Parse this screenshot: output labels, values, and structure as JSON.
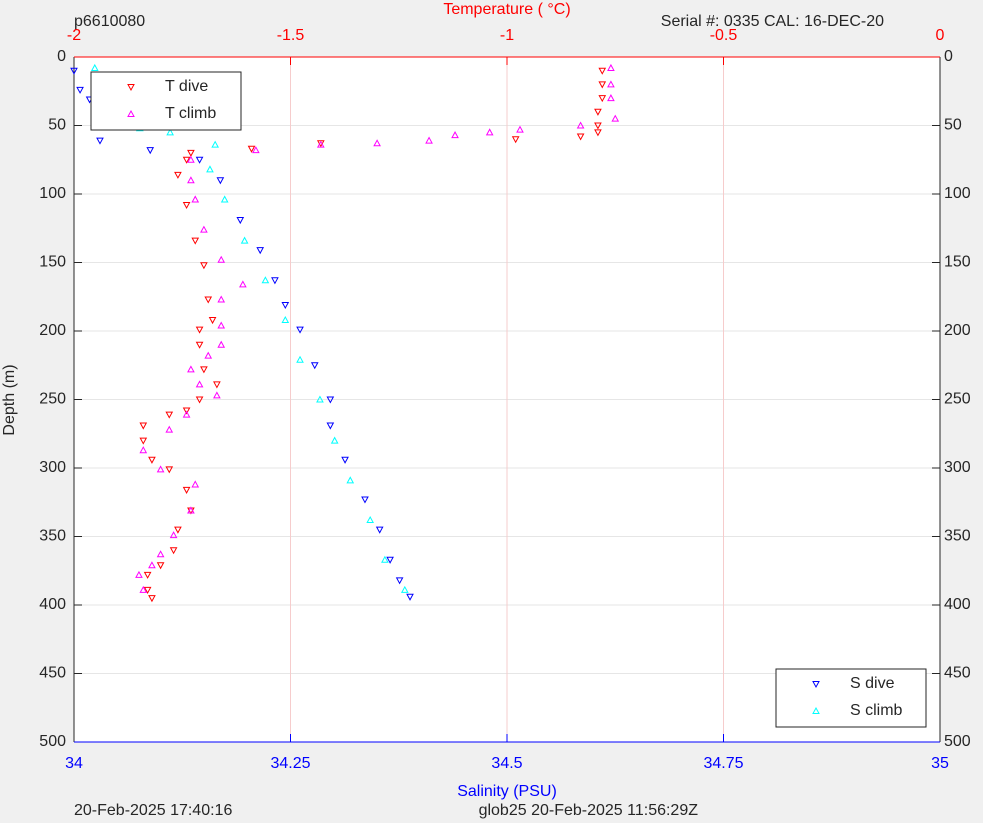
{
  "chart_data": {
    "type": "scatter",
    "header_left": "p6610080",
    "header_right": "Serial #: 0335  CAL: 16-DEC-20",
    "footer_left": "20-Feb-2025 17:40:16",
    "footer_right": "glob25 20-Feb-2025 11:56:29Z",
    "xlabel": "Salinity (PSU)",
    "x2label": "Temperature (    °C)",
    "ylabel": "Depth (m)",
    "xlim": [
      34,
      35
    ],
    "xticks": [
      34,
      34.25,
      34.5,
      34.75,
      35
    ],
    "x2lim": [
      -2,
      0
    ],
    "x2ticks": [
      -2,
      -1.5,
      -1,
      -0.5,
      0
    ],
    "ylim": [
      0,
      500
    ],
    "y_reversed": true,
    "yticks": [
      0,
      50,
      100,
      150,
      200,
      250,
      300,
      350,
      400,
      450,
      500
    ],
    "grid": true,
    "series": [
      {
        "name": "T dive",
        "color": "#ff0000",
        "marker": "v",
        "axis": "x2",
        "legend": "upper left",
        "x": [
          -0.78,
          -0.78,
          -0.78,
          -0.79,
          -0.79,
          -0.79,
          -0.83,
          -0.98,
          -1.43,
          -1.59,
          -1.73,
          -1.74,
          -1.76,
          -1.74,
          -1.72,
          -1.7,
          -1.69,
          -1.68,
          -1.71,
          -1.71,
          -1.7,
          -1.67,
          -1.71,
          -1.74,
          -1.78,
          -1.84,
          -1.84,
          -1.82,
          -1.78,
          -1.74,
          -1.73,
          -1.76,
          -1.77,
          -1.8,
          -1.83,
          -1.83,
          -1.82
        ],
        "values": [
          10,
          20,
          30,
          40,
          50,
          55,
          58,
          60,
          63,
          67,
          70,
          75,
          86,
          108,
          134,
          152,
          177,
          192,
          199,
          210,
          228,
          239,
          250,
          258,
          261,
          269,
          280,
          294,
          301,
          316,
          331,
          345,
          360,
          371,
          378,
          389,
          395
        ]
      },
      {
        "name": "T climb",
        "color": "#ff00ff",
        "marker": "^",
        "axis": "x2",
        "legend": "upper left",
        "x": [
          -0.76,
          -0.76,
          -0.76,
          -0.75,
          -0.83,
          -0.97,
          -1.04,
          -1.12,
          -1.18,
          -1.3,
          -1.43,
          -1.58,
          -1.73,
          -1.73,
          -1.72,
          -1.7,
          -1.66,
          -1.61,
          -1.66,
          -1.66,
          -1.66,
          -1.69,
          -1.73,
          -1.71,
          -1.67,
          -1.74,
          -1.78,
          -1.84,
          -1.8,
          -1.72,
          -1.73,
          -1.77,
          -1.8,
          -1.82,
          -1.85,
          -1.84
        ],
        "values": [
          8,
          20,
          30,
          45,
          50,
          53,
          55,
          57,
          61,
          63,
          64,
          68,
          75,
          90,
          104,
          126,
          148,
          166,
          177,
          196,
          210,
          218,
          228,
          239,
          247,
          261,
          272,
          287,
          301,
          312,
          331,
          349,
          363,
          371,
          378,
          389
        ]
      },
      {
        "name": "S dive",
        "color": "#0000ff",
        "marker": "v",
        "legend": "lower right",
        "x": [
          34.0,
          34.007,
          34.018,
          34.03,
          34.03,
          34.088,
          34.145,
          34.169,
          34.192,
          34.215,
          34.232,
          34.244,
          34.261,
          34.278,
          34.296,
          34.296,
          34.313,
          34.336,
          34.353,
          34.365,
          34.376,
          34.388
        ],
        "values": [
          10,
          24,
          31,
          50,
          61,
          68,
          75,
          90,
          119,
          141,
          163,
          181,
          199,
          225,
          250,
          269,
          294,
          323,
          345,
          367,
          382,
          394
        ]
      },
      {
        "name": "S climb",
        "color": "#00ffff",
        "marker": "^",
        "legend": "lower right",
        "x": [
          34.024,
          34.024,
          34.024,
          34.042,
          34.076,
          34.111,
          34.163,
          34.157,
          34.174,
          34.197,
          34.221,
          34.244,
          34.261,
          34.284,
          34.301,
          34.319,
          34.342,
          34.359,
          34.382
        ],
        "values": [
          8,
          25,
          40,
          50,
          52,
          55,
          64,
          82,
          104,
          134,
          163,
          192,
          221,
          250,
          280,
          309,
          338,
          367,
          389
        ]
      }
    ]
  }
}
